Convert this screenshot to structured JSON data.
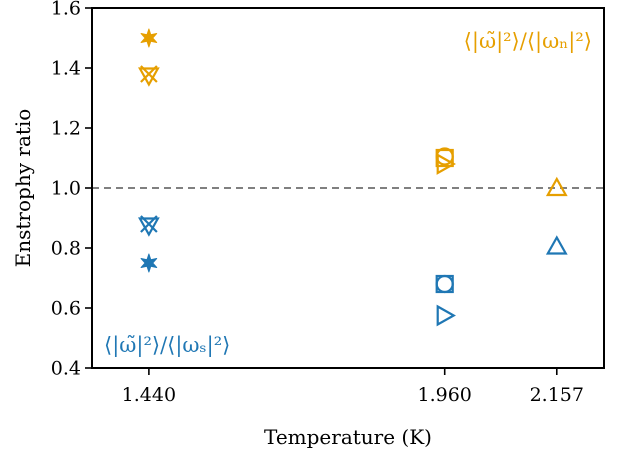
{
  "chart_data": {
    "type": "scatter",
    "title": "",
    "xlabel": "Temperature (K)",
    "ylabel": "Enstrophy ratio",
    "xlim": [
      1.34,
      2.24
    ],
    "ylim": [
      0.4,
      1.6
    ],
    "xticks": [
      1.44,
      1.96,
      2.157
    ],
    "xtick_labels": [
      "1.440",
      "1.960",
      "2.157"
    ],
    "yticks": [
      0.4,
      0.6,
      0.8,
      1.0,
      1.2,
      1.4,
      1.6
    ],
    "ytick_labels": [
      "0.4",
      "0.6",
      "0.8",
      "1.0",
      "1.2",
      "1.4",
      "1.6"
    ],
    "grid": false,
    "reference_line": {
      "y": 1.0,
      "style": "dashed",
      "color": "#808080"
    },
    "annotations": [
      {
        "text": "⟨|ω̃|²⟩/⟨|ωₙ|²⟩",
        "color": "#E69F00",
        "placement": "top-right"
      },
      {
        "text": "⟨|ω̃|²⟩/⟨|ωₛ|²⟩",
        "color": "#1F77B4",
        "placement": "bottom-left"
      }
    ],
    "series": [
      {
        "color": "#E69F00",
        "points": [
          {
            "x": 1.44,
            "y": 1.5,
            "marker": "star"
          },
          {
            "x": 1.44,
            "y": 1.375,
            "marker": "triangle-down"
          },
          {
            "x": 1.44,
            "y": 1.38,
            "marker": "x"
          },
          {
            "x": 1.96,
            "y": 1.1,
            "marker": "square"
          },
          {
            "x": 1.96,
            "y": 1.105,
            "marker": "circle"
          },
          {
            "x": 1.96,
            "y": 1.08,
            "marker": "triangle-right"
          },
          {
            "x": 2.157,
            "y": 1.0,
            "marker": "triangle-up"
          }
        ]
      },
      {
        "color": "#1F77B4",
        "points": [
          {
            "x": 1.44,
            "y": 0.75,
            "marker": "star"
          },
          {
            "x": 1.44,
            "y": 0.875,
            "marker": "triangle-down"
          },
          {
            "x": 1.44,
            "y": 0.88,
            "marker": "x"
          },
          {
            "x": 1.96,
            "y": 0.68,
            "marker": "square"
          },
          {
            "x": 1.96,
            "y": 0.68,
            "marker": "circle"
          },
          {
            "x": 1.96,
            "y": 0.575,
            "marker": "triangle-right"
          },
          {
            "x": 2.157,
            "y": 0.805,
            "marker": "triangle-up"
          }
        ]
      }
    ]
  }
}
